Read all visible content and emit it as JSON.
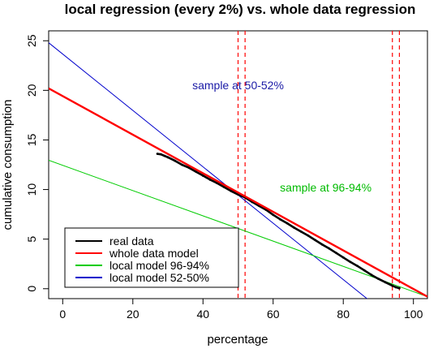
{
  "chart_data": {
    "type": "line",
    "title": "local regression (every 2%) vs. whole data regression",
    "xlabel": "percentage",
    "ylabel": "cumulative consumption",
    "xlim": [
      -4,
      104
    ],
    "ylim": [
      -1,
      26
    ],
    "x_ticks": [
      0,
      20,
      40,
      60,
      80,
      100
    ],
    "y_ticks": [
      0,
      5,
      10,
      15,
      20,
      25
    ],
    "grid": false,
    "legend_position": "bottom-left",
    "colors": {
      "real": "#000000",
      "whole": "#ff0000",
      "local_96": "#00cc00",
      "local_52": "#0000cc",
      "vline": "#ff0000"
    },
    "series": [
      {
        "name": "real data",
        "kind": "data",
        "x": [
          27,
          28,
          29,
          30,
          32,
          34,
          36,
          38,
          40,
          42,
          44,
          46,
          48,
          50,
          52,
          54,
          56,
          58,
          60,
          62,
          64,
          66,
          68,
          70,
          72,
          74,
          76,
          78,
          80,
          82,
          84,
          86,
          88,
          90,
          92,
          94,
          95,
          96
        ],
        "y": [
          13.6,
          13.55,
          13.4,
          13.25,
          12.9,
          12.5,
          12.2,
          11.8,
          11.4,
          11.0,
          10.65,
          10.25,
          9.85,
          9.5,
          9.2,
          8.75,
          8.35,
          7.95,
          7.45,
          7.0,
          6.6,
          6.15,
          5.75,
          5.35,
          4.9,
          4.45,
          4.05,
          3.6,
          3.15,
          2.7,
          2.3,
          1.85,
          1.4,
          1.0,
          0.65,
          0.3,
          0.15,
          0.05
        ]
      },
      {
        "name": "whole data model",
        "kind": "line",
        "x": [
          -4,
          104
        ],
        "y": [
          20.2,
          -0.8
        ]
      },
      {
        "name": "local model 96-94%",
        "kind": "line",
        "x": [
          -4,
          104
        ],
        "y": [
          12.95,
          -0.8
        ]
      },
      {
        "name": "local model 52-50%",
        "kind": "line",
        "x": [
          -4,
          104
        ],
        "y": [
          24.8,
          -5.9
        ]
      }
    ],
    "vertical_lines": [
      50,
      52,
      94,
      96
    ],
    "annotations": [
      {
        "text": "sample at 50-52%",
        "x": 50,
        "y": 20.1,
        "color": "#1a1aa6"
      },
      {
        "text": "sample at 96-94%",
        "x": 75,
        "y": 9.8,
        "color": "#00bb00"
      }
    ]
  }
}
